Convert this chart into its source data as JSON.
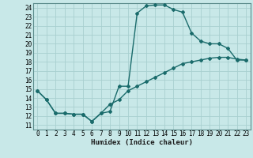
{
  "xlabel": "Humidex (Indice chaleur)",
  "ylabel": "",
  "xlim": [
    -0.5,
    23.5
  ],
  "ylim": [
    10.5,
    24.5
  ],
  "xticks": [
    0,
    1,
    2,
    3,
    4,
    5,
    6,
    7,
    8,
    9,
    10,
    11,
    12,
    13,
    14,
    15,
    16,
    17,
    18,
    19,
    20,
    21,
    22,
    23
  ],
  "yticks": [
    11,
    12,
    13,
    14,
    15,
    16,
    17,
    18,
    19,
    20,
    21,
    22,
    23,
    24
  ],
  "bg_color": "#c8e8e8",
  "grid_color": "#a8d0d0",
  "line_color": "#1a6b6b",
  "line1_x": [
    0,
    1,
    2,
    3,
    4,
    5,
    6,
    7,
    8,
    9,
    10,
    11,
    12,
    13,
    14,
    15,
    16,
    17,
    18,
    19,
    20,
    21,
    22,
    23
  ],
  "line1_y": [
    14.8,
    13.8,
    12.3,
    12.3,
    12.2,
    12.2,
    11.4,
    12.3,
    12.5,
    15.3,
    15.3,
    23.4,
    24.2,
    24.3,
    24.3,
    23.8,
    23.5,
    21.2,
    20.3,
    20.0,
    20.0,
    19.5,
    18.2,
    18.2
  ],
  "line2_x": [
    0,
    1,
    2,
    3,
    4,
    5,
    6,
    7,
    8,
    9,
    10,
    11,
    12,
    13,
    14,
    15,
    16,
    17,
    18,
    19,
    20,
    21,
    22,
    23
  ],
  "line2_y": [
    14.8,
    13.8,
    12.3,
    12.3,
    12.2,
    12.2,
    11.4,
    12.3,
    13.3,
    13.8,
    14.8,
    15.3,
    15.8,
    16.3,
    16.8,
    17.3,
    17.8,
    18.0,
    18.2,
    18.4,
    18.5,
    18.5,
    18.3,
    18.2
  ],
  "tick_fontsize": 5.5,
  "xlabel_fontsize": 6.5,
  "marker_size": 2.0
}
